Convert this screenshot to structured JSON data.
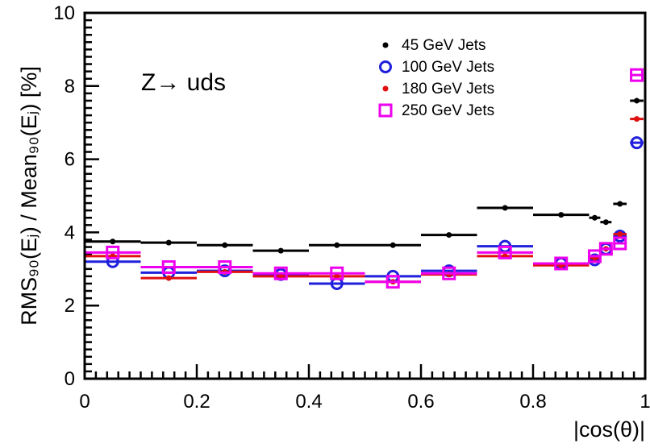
{
  "chart_data": {
    "type": "scatter",
    "title": "",
    "xlabel": "|cos(θ)|",
    "ylabel": "RMS₉₀(Eⱼ) / Mean₉₀(Eⱼ) [%]",
    "xlim": [
      0,
      1
    ],
    "ylim": [
      0,
      10
    ],
    "x_ticks": [
      "0",
      "0.2",
      "0.4",
      "0.6",
      "0.8",
      "1"
    ],
    "y_ticks": [
      "0",
      "2",
      "4",
      "6",
      "8",
      "10"
    ],
    "annotation": "Z→ uds",
    "legend_position": "top-right",
    "series": [
      {
        "name": "45 GeV Jets",
        "color": "#000000",
        "marker": "dot",
        "points": [
          {
            "x": 0.05,
            "y": 3.75,
            "xerr": 0.05
          },
          {
            "x": 0.15,
            "y": 3.72,
            "xerr": 0.05
          },
          {
            "x": 0.25,
            "y": 3.65,
            "xerr": 0.05
          },
          {
            "x": 0.35,
            "y": 3.5,
            "xerr": 0.05
          },
          {
            "x": 0.45,
            "y": 3.65,
            "xerr": 0.05
          },
          {
            "x": 0.55,
            "y": 3.65,
            "xerr": 0.05
          },
          {
            "x": 0.65,
            "y": 3.93,
            "xerr": 0.05
          },
          {
            "x": 0.75,
            "y": 4.67,
            "xerr": 0.05
          },
          {
            "x": 0.85,
            "y": 4.48,
            "xerr": 0.05
          },
          {
            "x": 0.91,
            "y": 4.4,
            "xerr": 0.01
          },
          {
            "x": 0.93,
            "y": 4.28,
            "xerr": 0.01
          },
          {
            "x": 0.955,
            "y": 4.78,
            "xerr": 0.012
          },
          {
            "x": 0.985,
            "y": 7.6,
            "xerr": 0.012
          }
        ]
      },
      {
        "name": "100 GeV Jets",
        "color": "#1f1fdd",
        "marker": "circle",
        "points": [
          {
            "x": 0.05,
            "y": 3.2,
            "xerr": 0.05
          },
          {
            "x": 0.15,
            "y": 2.9,
            "xerr": 0.05
          },
          {
            "x": 0.25,
            "y": 2.95,
            "xerr": 0.05
          },
          {
            "x": 0.35,
            "y": 2.85,
            "xerr": 0.05
          },
          {
            "x": 0.45,
            "y": 2.6,
            "xerr": 0.05
          },
          {
            "x": 0.55,
            "y": 2.8,
            "xerr": 0.05
          },
          {
            "x": 0.65,
            "y": 2.95,
            "xerr": 0.05
          },
          {
            "x": 0.75,
            "y": 3.62,
            "xerr": 0.05
          },
          {
            "x": 0.85,
            "y": 3.15,
            "xerr": 0.05
          },
          {
            "x": 0.91,
            "y": 3.25,
            "xerr": 0.01
          },
          {
            "x": 0.93,
            "y": 3.55,
            "xerr": 0.01
          },
          {
            "x": 0.955,
            "y": 3.9,
            "xerr": 0.012
          },
          {
            "x": 0.985,
            "y": 6.45,
            "xerr": 0.012
          }
        ]
      },
      {
        "name": "180 GeV Jets",
        "color": "#e01010",
        "marker": "dot",
        "points": [
          {
            "x": 0.05,
            "y": 3.35,
            "xerr": 0.05
          },
          {
            "x": 0.15,
            "y": 2.75,
            "xerr": 0.05
          },
          {
            "x": 0.25,
            "y": 2.92,
            "xerr": 0.05
          },
          {
            "x": 0.35,
            "y": 2.8,
            "xerr": 0.05
          },
          {
            "x": 0.45,
            "y": 2.8,
            "xerr": 0.05
          },
          {
            "x": 0.55,
            "y": 2.65,
            "xerr": 0.05
          },
          {
            "x": 0.65,
            "y": 2.85,
            "xerr": 0.05
          },
          {
            "x": 0.75,
            "y": 3.35,
            "xerr": 0.05
          },
          {
            "x": 0.85,
            "y": 3.1,
            "xerr": 0.05
          },
          {
            "x": 0.91,
            "y": 3.3,
            "xerr": 0.01
          },
          {
            "x": 0.93,
            "y": 3.55,
            "xerr": 0.01
          },
          {
            "x": 0.955,
            "y": 3.95,
            "xerr": 0.012
          },
          {
            "x": 0.985,
            "y": 7.1,
            "xerr": 0.012
          }
        ]
      },
      {
        "name": "250 GeV Jets",
        "color": "#ee00ee",
        "marker": "square",
        "points": [
          {
            "x": 0.05,
            "y": 3.45,
            "xerr": 0.05
          },
          {
            "x": 0.15,
            "y": 3.05,
            "xerr": 0.05
          },
          {
            "x": 0.25,
            "y": 3.05,
            "xerr": 0.05
          },
          {
            "x": 0.35,
            "y": 2.88,
            "xerr": 0.05
          },
          {
            "x": 0.45,
            "y": 2.88,
            "xerr": 0.05
          },
          {
            "x": 0.55,
            "y": 2.65,
            "xerr": 0.05
          },
          {
            "x": 0.65,
            "y": 2.88,
            "xerr": 0.05
          },
          {
            "x": 0.75,
            "y": 3.45,
            "xerr": 0.05
          },
          {
            "x": 0.85,
            "y": 3.15,
            "xerr": 0.05
          },
          {
            "x": 0.91,
            "y": 3.35,
            "xerr": 0.01
          },
          {
            "x": 0.93,
            "y": 3.55,
            "xerr": 0.01
          },
          {
            "x": 0.955,
            "y": 3.7,
            "xerr": 0.012
          },
          {
            "x": 0.985,
            "y": 8.3,
            "xerr": 0.012
          }
        ]
      }
    ]
  }
}
